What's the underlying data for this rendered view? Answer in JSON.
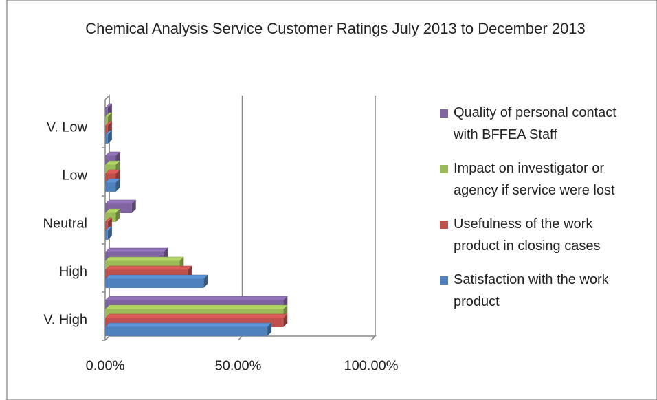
{
  "chart_data": {
    "type": "bar3d-horizontal",
    "title": "Chemical Analysis Service Customer Ratings July 2013 to December 2013",
    "categories": [
      "V. High",
      "High",
      "Neutral",
      "Low",
      "V. Low"
    ],
    "series": [
      {
        "name": "Satisfaction with the work product",
        "color": "#4f81bd",
        "values": [
          61,
          37,
          1,
          4,
          1
        ]
      },
      {
        "name": "Usefulness of the work product in closing cases",
        "color": "#c0504d",
        "values": [
          67,
          31,
          1,
          4,
          1
        ]
      },
      {
        "name": "Impact on investigator or agency if service were lost",
        "color": "#9bbb59",
        "values": [
          67,
          28,
          4,
          4,
          1
        ]
      },
      {
        "name": "Quality of personal contact with BFFEA Staff",
        "color": "#8064a2",
        "values": [
          67,
          22,
          10,
          4,
          1
        ]
      }
    ],
    "xlim": [
      0,
      100
    ],
    "xticks": [
      {
        "value": 0,
        "label": "0.00%"
      },
      {
        "value": 50,
        "label": "50.00%"
      },
      {
        "value": 100,
        "label": "100.00%"
      }
    ],
    "grid": true,
    "legend": "right"
  }
}
